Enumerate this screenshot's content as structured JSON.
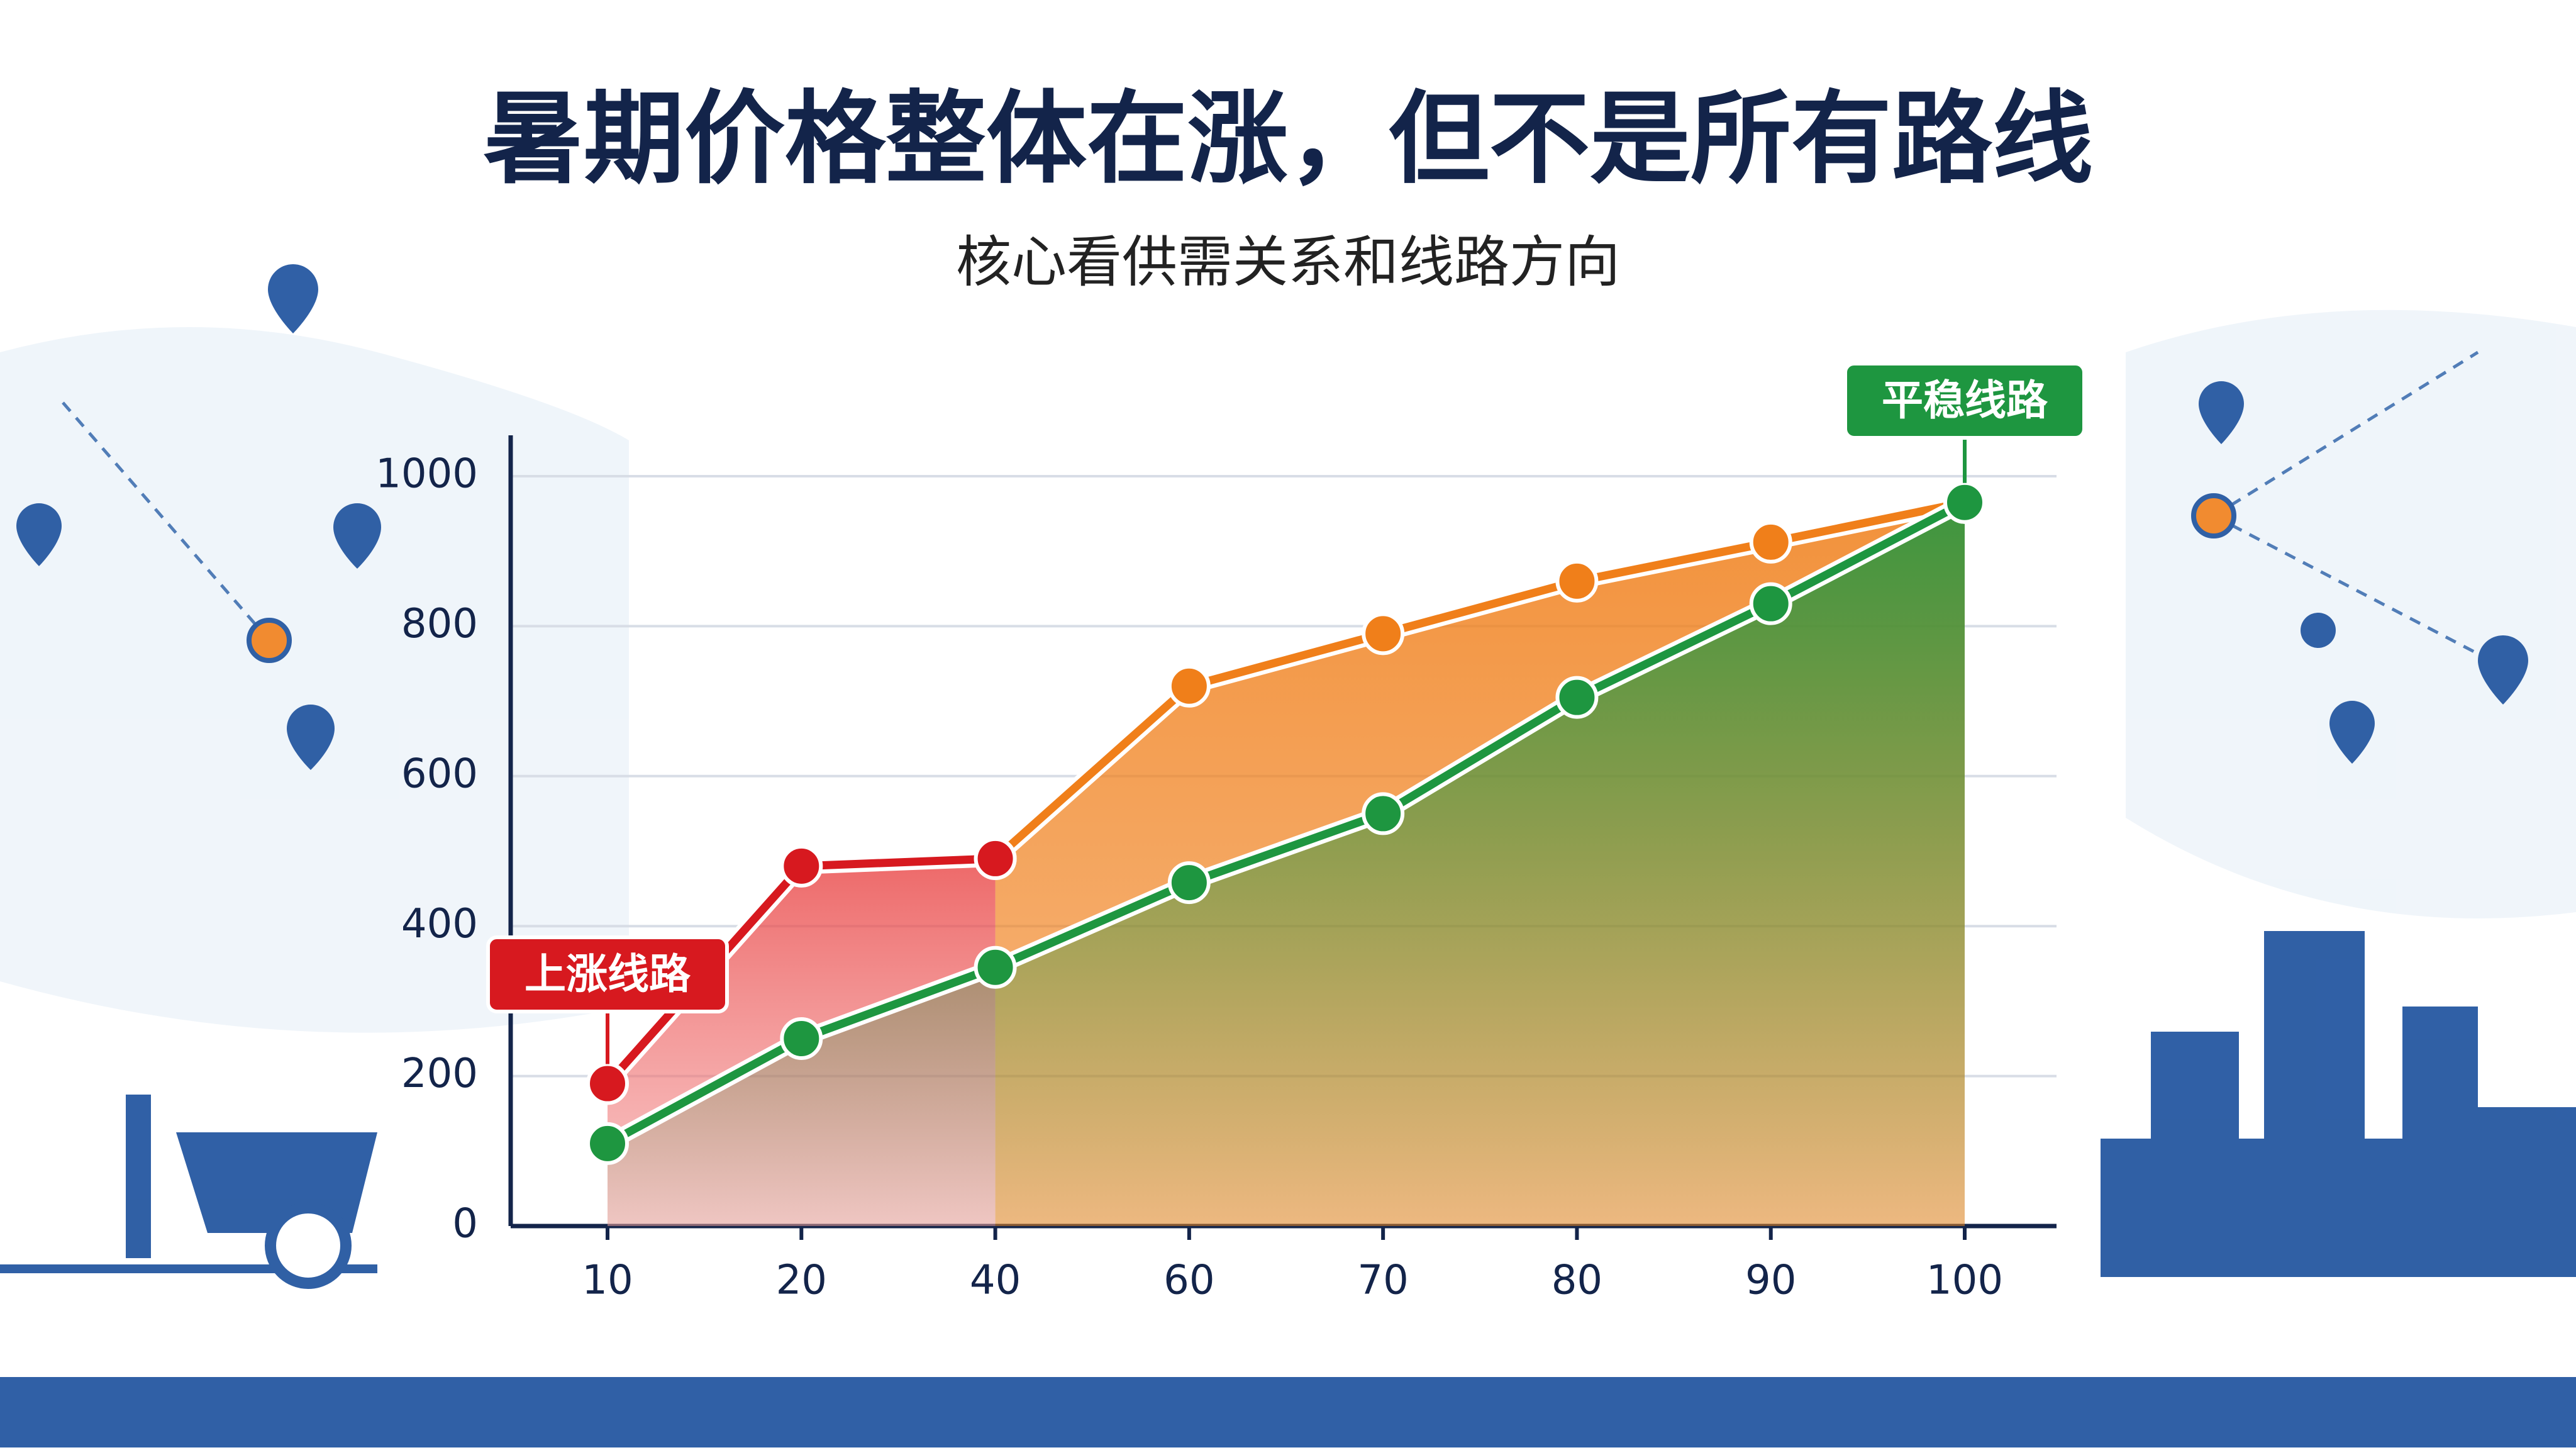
{
  "chart_data": {
    "type": "line",
    "title": "暑期价格整体在涨，但不是所有路线",
    "subtitle": "核心看供需关系和线路方向",
    "categories": [
      "10",
      "20",
      "40",
      "60",
      "70",
      "80",
      "90",
      "100"
    ],
    "series": [
      {
        "color": "#f07f1a",
        "values": [
          null,
          null,
          490,
          720,
          790,
          860,
          912,
          965
        ]
      },
      {
        "name": "上涨线路",
        "color": "#d7191f",
        "values": [
          190,
          480,
          490,
          null,
          null,
          null,
          null,
          null
        ]
      },
      {
        "name": "平稳线路",
        "color": "#1e9640",
        "values": [
          110,
          250,
          345,
          458,
          550,
          705,
          830,
          965
        ]
      }
    ],
    "ylim": [
      0,
      1000
    ],
    "yticks": [
      0,
      200,
      400,
      600,
      800,
      1000
    ],
    "grid": true
  }
}
